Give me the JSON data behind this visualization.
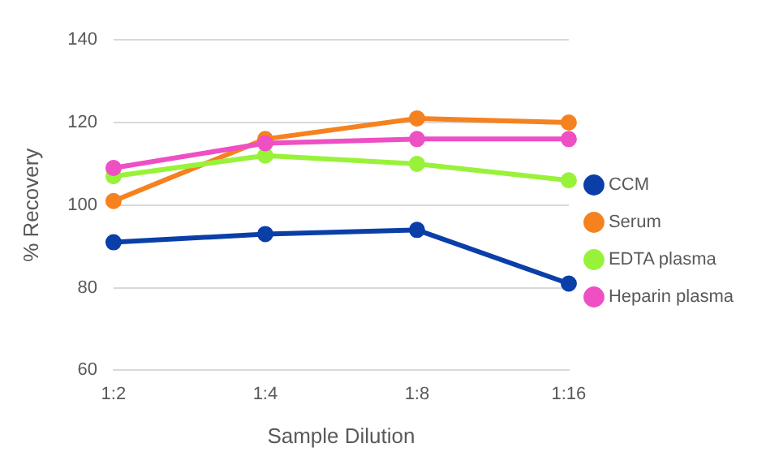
{
  "chart_data": {
    "type": "line",
    "xlabel": "Sample Dilution",
    "ylabel": "% Recovery",
    "categories": [
      "1:2",
      "1:4",
      "1:8",
      "1:16"
    ],
    "series": [
      {
        "name": "CCM",
        "color": "#0b3fa8",
        "values": [
          91,
          93,
          94,
          81
        ]
      },
      {
        "name": "Serum",
        "color": "#f5821f",
        "values": [
          101,
          116,
          121,
          120
        ]
      },
      {
        "name": "EDTA plasma",
        "color": "#99f23a",
        "values": [
          107,
          112,
          110,
          106
        ]
      },
      {
        "name": "Heparin plasma",
        "color": "#ee4fc3",
        "values": [
          109,
          115,
          116,
          116
        ]
      }
    ],
    "ylim": [
      60,
      140
    ],
    "yticks": [
      60,
      80,
      100,
      120,
      140
    ],
    "grid": "y",
    "legend": "right",
    "marker": "circle",
    "line_style": "solid"
  }
}
